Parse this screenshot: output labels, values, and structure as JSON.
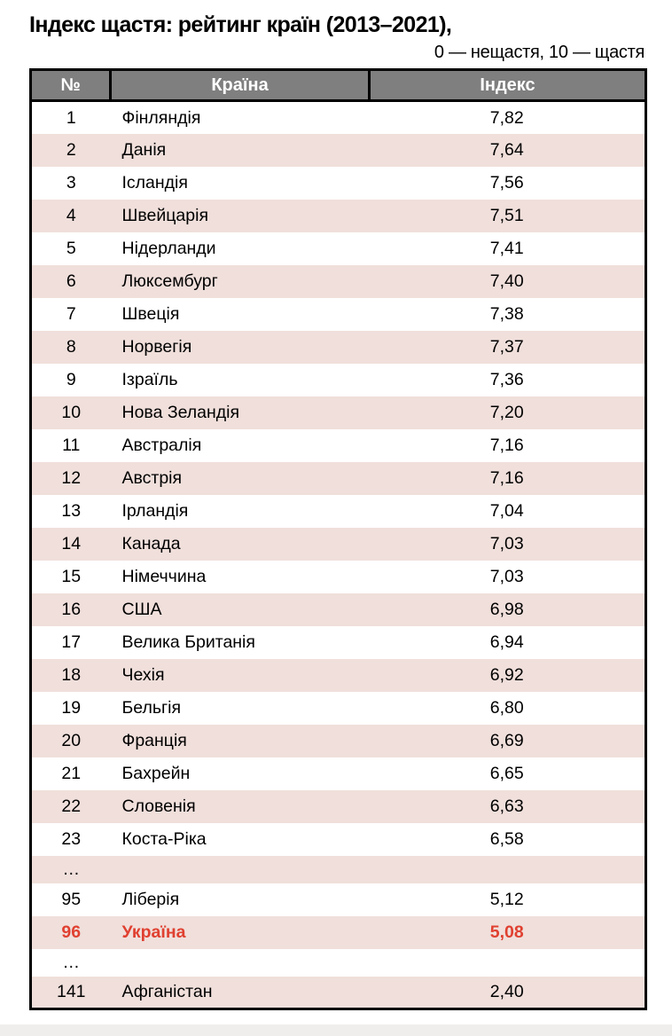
{
  "page": {
    "title": "Індекс щастя: рейтинг країн (2013–2021),",
    "subtitle": "0 — нещастя, 10 — щастя"
  },
  "table": {
    "columns": [
      "№",
      "Країна",
      "Індекс"
    ],
    "rows": [
      {
        "rank": "1",
        "country": "Фінляндія",
        "index": "7,82"
      },
      {
        "rank": "2",
        "country": "Данія",
        "index": "7,64"
      },
      {
        "rank": "3",
        "country": "Ісландія",
        "index": "7,56"
      },
      {
        "rank": "4",
        "country": "Швейцарія",
        "index": "7,51"
      },
      {
        "rank": "5",
        "country": "Нідерланди",
        "index": "7,41"
      },
      {
        "rank": "6",
        "country": "Люксембург",
        "index": "7,40"
      },
      {
        "rank": "7",
        "country": "Швеція",
        "index": "7,38"
      },
      {
        "rank": "8",
        "country": "Норвегія",
        "index": "7,37"
      },
      {
        "rank": "9",
        "country": "Ізраїль",
        "index": "7,36"
      },
      {
        "rank": "10",
        "country": "Нова Зеландія",
        "index": "7,20"
      },
      {
        "rank": "11",
        "country": "Австралія",
        "index": "7,16"
      },
      {
        "rank": "12",
        "country": "Австрія",
        "index": "7,16"
      },
      {
        "rank": "13",
        "country": "Ірландія",
        "index": "7,04"
      },
      {
        "rank": "14",
        "country": "Канада",
        "index": "7,03"
      },
      {
        "rank": "15",
        "country": "Німеччина",
        "index": "7,03"
      },
      {
        "rank": "16",
        "country": "США",
        "index": "6,98"
      },
      {
        "rank": "17",
        "country": "Велика Британія",
        "index": "6,94"
      },
      {
        "rank": "18",
        "country": "Чехія",
        "index": "6,92"
      },
      {
        "rank": "19",
        "country": "Бельгія",
        "index": "6,80"
      },
      {
        "rank": "20",
        "country": "Франція",
        "index": "6,69"
      },
      {
        "rank": "21",
        "country": "Бахрейн",
        "index": "6,65"
      },
      {
        "rank": "22",
        "country": "Словенія",
        "index": "6,63"
      },
      {
        "rank": "23",
        "country": "Коста-Ріка",
        "index": "6,58"
      },
      {
        "rank": "…",
        "country": "",
        "index": "",
        "ellipsis": true
      },
      {
        "rank": "95",
        "country": "Ліберія",
        "index": "5,12"
      },
      {
        "rank": "96",
        "country": "Україна",
        "index": "5,08",
        "highlight": true
      },
      {
        "rank": "…",
        "country": "",
        "index": "",
        "ellipsis": true
      },
      {
        "rank": "141",
        "country": "Афганістан",
        "index": "2,40"
      }
    ]
  },
  "colors": {
    "header_bg": "#7f7f7f",
    "header_text": "#ffffff",
    "row_alt_bg": "#f0dfdb",
    "highlight_text": "#e04030",
    "border": "#000000",
    "bottom_strip": "#f0eeec"
  },
  "chart_data": {
    "type": "table",
    "title": "Індекс щастя: рейтинг країн (2013–2021)",
    "scale_note": "0 — нещастя, 10 — щастя",
    "columns": [
      "№",
      "Країна",
      "Індекс"
    ],
    "categories": [
      "Фінляндія",
      "Данія",
      "Ісландія",
      "Швейцарія",
      "Нідерланди",
      "Люксембург",
      "Швеція",
      "Норвегія",
      "Ізраїль",
      "Нова Зеландія",
      "Австралія",
      "Австрія",
      "Ірландія",
      "Канада",
      "Німеччина",
      "США",
      "Велика Британія",
      "Чехія",
      "Бельгія",
      "Франція",
      "Бахрейн",
      "Словенія",
      "Коста-Ріка",
      "Ліберія",
      "Україна",
      "Афганістан"
    ],
    "ranks": [
      1,
      2,
      3,
      4,
      5,
      6,
      7,
      8,
      9,
      10,
      11,
      12,
      13,
      14,
      15,
      16,
      17,
      18,
      19,
      20,
      21,
      22,
      23,
      95,
      96,
      141
    ],
    "values": [
      7.82,
      7.64,
      7.56,
      7.51,
      7.41,
      7.4,
      7.38,
      7.37,
      7.36,
      7.2,
      7.16,
      7.16,
      7.04,
      7.03,
      7.03,
      6.98,
      6.94,
      6.92,
      6.8,
      6.69,
      6.65,
      6.63,
      6.58,
      5.12,
      5.08,
      2.4
    ],
    "value_range": [
      0,
      10
    ],
    "highlighted_row": "Україна"
  }
}
